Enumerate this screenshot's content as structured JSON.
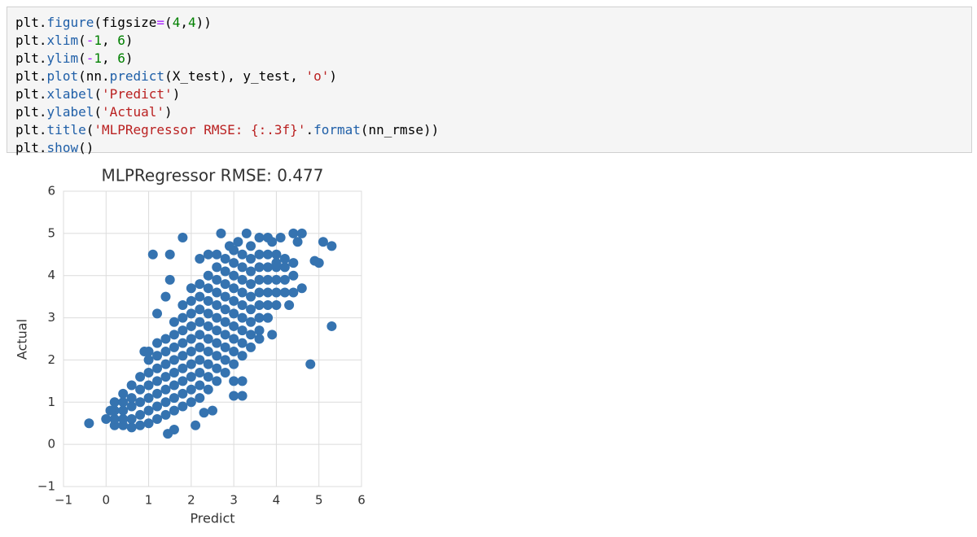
{
  "code": {
    "lines": [
      "plt.figure(figsize=(4,4))",
      "plt.xlim(-1, 6)",
      "plt.ylim(-1, 6)",
      "plt.plot(nn.predict(X_test), y_test, 'o')",
      "plt.xlabel('Predict')",
      "plt.ylabel('Actual')",
      "plt.title('MLPRegressor RMSE: {:.3f}'.format(nn_rmse))",
      "plt.show()"
    ]
  },
  "chart_data": {
    "type": "scatter",
    "title": "MLPRegressor RMSE: 0.477",
    "x_label": "Predict",
    "y_label": "Actual",
    "color": "#3573b0",
    "grid": true,
    "xlim": [
      -1,
      6
    ],
    "ylim": [
      -1,
      6
    ],
    "xticks": [
      {
        "value": -1,
        "label": "−1"
      },
      0,
      1,
      2,
      3,
      4,
      5,
      6
    ],
    "yticks": [
      {
        "value": -1,
        "label": "−1"
      },
      0,
      1,
      2,
      3,
      4,
      5,
      6
    ],
    "x": [
      0.2,
      0.2,
      0.2,
      0.2,
      0.4,
      0.4,
      0.4,
      0.4,
      0.4,
      0.6,
      0.6,
      0.6,
      0.6,
      0.6,
      0.8,
      0.8,
      0.8,
      0.8,
      0.8,
      1.0,
      1.0,
      1.0,
      1.0,
      1.0,
      1.0,
      1.2,
      1.2,
      1.2,
      1.2,
      1.2,
      1.2,
      1.2,
      1.4,
      1.4,
      1.4,
      1.4,
      1.4,
      1.4,
      1.4,
      1.6,
      1.6,
      1.6,
      1.6,
      1.6,
      1.6,
      1.6,
      1.6,
      1.8,
      1.8,
      1.8,
      1.8,
      1.8,
      1.8,
      1.8,
      1.8,
      1.8,
      2.0,
      2.0,
      2.0,
      2.0,
      2.0,
      2.0,
      2.0,
      2.0,
      2.0,
      2.0,
      2.2,
      2.2,
      2.2,
      2.2,
      2.2,
      2.2,
      2.2,
      2.2,
      2.2,
      2.2,
      2.4,
      2.4,
      2.4,
      2.4,
      2.4,
      2.4,
      2.4,
      2.4,
      2.4,
      2.4,
      2.6,
      2.6,
      2.6,
      2.6,
      2.6,
      2.6,
      2.6,
      2.6,
      2.6,
      2.6,
      2.8,
      2.8,
      2.8,
      2.8,
      2.8,
      2.8,
      2.8,
      2.8,
      2.8,
      2.8,
      3.0,
      3.0,
      3.0,
      3.0,
      3.0,
      3.0,
      3.0,
      3.0,
      3.0,
      3.0,
      3.2,
      3.2,
      3.2,
      3.2,
      3.2,
      3.2,
      3.2,
      3.2,
      3.2,
      3.4,
      3.4,
      3.4,
      3.4,
      3.4,
      3.4,
      3.4,
      3.4,
      3.4,
      3.6,
      3.6,
      3.6,
      3.6,
      3.6,
      3.6,
      3.6,
      3.8,
      3.8,
      3.8,
      3.8,
      3.8,
      3.8,
      4.0,
      4.0,
      4.0,
      4.0,
      4.0,
      4.2,
      4.2,
      4.2,
      4.2,
      4.4,
      4.4,
      -0.4,
      0.0,
      0.1,
      0.9,
      1.0,
      1.2,
      1.4,
      1.5,
      1.1,
      1.5,
      1.8,
      2.7,
      2.2,
      2.4,
      2.6,
      2.9,
      3.1,
      3.3,
      3.6,
      3.8,
      3.9,
      4.1,
      4.4,
      4.5,
      4.6,
      4.0,
      4.4,
      4.3,
      4.6,
      3.8,
      3.9,
      3.6,
      3.0,
      3.2,
      3.0,
      3.2,
      2.5,
      2.3,
      2.1,
      1.45,
      1.6,
      4.8,
      5.3,
      5.0,
      4.9,
      5.1,
      5.3
    ],
    "values": [
      0.45,
      0.6,
      0.8,
      1.0,
      0.45,
      0.6,
      0.8,
      1.0,
      1.2,
      0.4,
      0.6,
      0.9,
      1.1,
      1.4,
      0.45,
      0.7,
      1.0,
      1.3,
      1.6,
      0.5,
      0.8,
      1.1,
      1.4,
      1.7,
      2.0,
      0.6,
      0.9,
      1.2,
      1.5,
      1.8,
      2.1,
      2.4,
      0.7,
      1.0,
      1.3,
      1.6,
      1.9,
      2.2,
      2.5,
      0.8,
      1.1,
      1.4,
      1.7,
      2.0,
      2.3,
      2.6,
      2.9,
      0.9,
      1.2,
      1.5,
      1.8,
      2.1,
      2.4,
      2.7,
      3.0,
      3.3,
      1.0,
      1.3,
      1.6,
      1.9,
      2.2,
      2.5,
      2.8,
      3.1,
      3.4,
      3.7,
      1.1,
      1.4,
      1.7,
      2.0,
      2.3,
      2.6,
      2.9,
      3.2,
      3.5,
      3.8,
      1.3,
      1.6,
      1.9,
      2.2,
      2.5,
      2.8,
      3.1,
      3.4,
      3.7,
      4.0,
      1.5,
      1.8,
      2.1,
      2.4,
      2.7,
      3.0,
      3.3,
      3.6,
      3.9,
      4.2,
      1.7,
      2.0,
      2.3,
      2.6,
      2.9,
      3.2,
      3.5,
      3.8,
      4.1,
      4.4,
      1.9,
      2.2,
      2.5,
      2.8,
      3.1,
      3.4,
      3.7,
      4.0,
      4.3,
      4.6,
      2.1,
      2.4,
      2.7,
      3.0,
      3.3,
      3.6,
      3.9,
      4.2,
      4.5,
      2.3,
      2.6,
      2.9,
      3.2,
      3.5,
      3.8,
      4.1,
      4.4,
      4.7,
      2.7,
      3.0,
      3.3,
      3.6,
      3.9,
      4.2,
      4.5,
      3.0,
      3.3,
      3.6,
      3.9,
      4.2,
      4.5,
      3.3,
      3.6,
      3.9,
      4.2,
      4.5,
      3.6,
      3.9,
      4.2,
      4.4,
      4.0,
      4.3,
      0.5,
      0.6,
      0.8,
      2.2,
      2.2,
      3.1,
      3.5,
      3.9,
      4.5,
      4.5,
      4.9,
      5.0,
      4.4,
      4.5,
      4.5,
      4.7,
      4.8,
      5.0,
      4.9,
      4.9,
      4.8,
      4.9,
      5.0,
      4.8,
      5.0,
      4.3,
      3.6,
      3.3,
      3.7,
      3.0,
      2.6,
      2.5,
      1.5,
      1.5,
      1.15,
      1.15,
      0.8,
      0.75,
      0.45,
      0.25,
      0.35,
      1.9,
      2.8,
      4.3,
      4.35,
      4.8,
      4.7
    ]
  }
}
